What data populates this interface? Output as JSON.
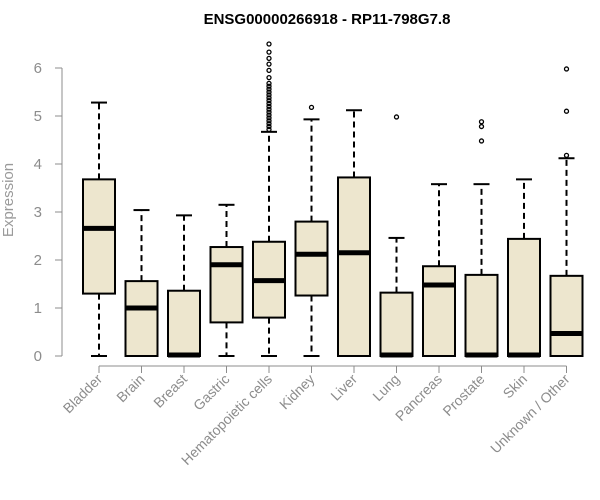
{
  "chart_data": {
    "type": "boxplot",
    "title": "ENSG00000266918 - RP11-798G7.8",
    "xlabel": "",
    "ylabel": "Expression",
    "ylim": [
      0,
      6.6
    ],
    "yticks": [
      0,
      1,
      2,
      3,
      4,
      5,
      6
    ],
    "colors": {
      "box_fill": "#ede6ce",
      "box_stroke": "#000000",
      "axis": "#8c8c8c"
    },
    "categories": [
      "Bladder",
      "Brain",
      "Breast",
      "Gastric",
      "Hematopoietic cells",
      "Kidney",
      "Liver",
      "Lung",
      "Pancreas",
      "Prostate",
      "Skin",
      "Unknown / Other"
    ],
    "boxes": [
      {
        "category": "Bladder",
        "min": 0,
        "q1": 1.3,
        "median": 2.66,
        "q3": 3.68,
        "max": 5.28,
        "outliers": []
      },
      {
        "category": "Brain",
        "min": 0,
        "q1": 0,
        "median": 1.0,
        "q3": 1.56,
        "max": 3.04,
        "outliers": []
      },
      {
        "category": "Breast",
        "min": 0,
        "q1": 0,
        "median": 0.02,
        "q3": 1.36,
        "max": 2.93,
        "outliers": []
      },
      {
        "category": "Gastric",
        "min": 0,
        "q1": 0.7,
        "median": 1.9,
        "q3": 2.27,
        "max": 3.15,
        "outliers": []
      },
      {
        "category": "Hematopoietic cells",
        "min": 0,
        "q1": 0.8,
        "median": 1.57,
        "q3": 2.38,
        "max": 4.67,
        "outliers": [
          4.72,
          4.78,
          4.84,
          4.9,
          4.96,
          5.02,
          5.08,
          5.14,
          5.2,
          5.26,
          5.32,
          5.38,
          5.44,
          5.5,
          5.56,
          5.62,
          5.68,
          5.8,
          5.95,
          6.08,
          6.2,
          6.33,
          6.5
        ]
      },
      {
        "category": "Kidney",
        "min": 0,
        "q1": 1.26,
        "median": 2.12,
        "q3": 2.8,
        "max": 4.93,
        "outliers": [
          5.18
        ]
      },
      {
        "category": "Liver",
        "min": 0,
        "q1": 0,
        "median": 2.15,
        "q3": 3.72,
        "max": 5.12,
        "outliers": []
      },
      {
        "category": "Lung",
        "min": 0,
        "q1": 0,
        "median": 0.02,
        "q3": 1.32,
        "max": 2.46,
        "outliers": [
          4.98
        ]
      },
      {
        "category": "Pancreas",
        "min": 0,
        "q1": 0,
        "median": 1.48,
        "q3": 1.87,
        "max": 3.58,
        "outliers": []
      },
      {
        "category": "Prostate",
        "min": 0,
        "q1": 0,
        "median": 0.02,
        "q3": 1.69,
        "max": 3.58,
        "outliers": [
          4.48,
          4.78,
          4.88
        ]
      },
      {
        "category": "Skin",
        "min": 0,
        "q1": 0,
        "median": 0.02,
        "q3": 2.44,
        "max": 3.68,
        "outliers": []
      },
      {
        "category": "Unknown / Other",
        "min": 0,
        "q1": 0,
        "median": 0.47,
        "q3": 1.67,
        "max": 4.12,
        "outliers": [
          4.18,
          5.1,
          5.98
        ]
      }
    ]
  }
}
